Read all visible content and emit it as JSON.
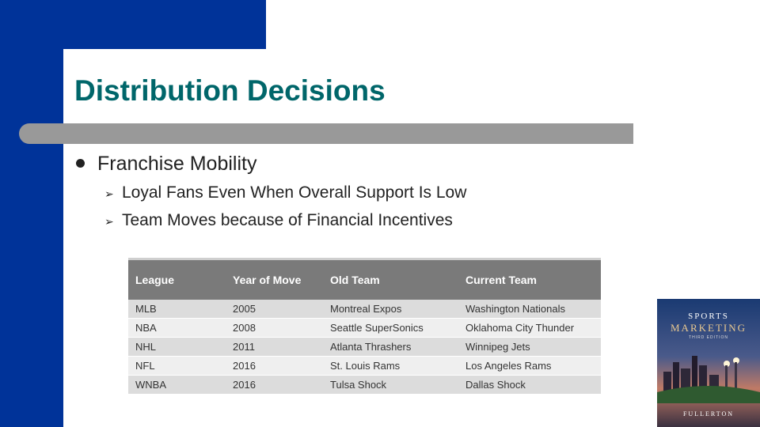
{
  "slide": {
    "title": "Distribution Decisions",
    "bullet": "Franchise Mobility",
    "sub_bullets": [
      "Loyal Fans Even When Overall Support Is Low",
      "Team Moves because of Financial Incentives"
    ]
  },
  "table": {
    "headers": [
      "League",
      "Year of Move",
      "Old Team",
      "Current Team"
    ],
    "rows": [
      [
        "MLB",
        "2005",
        "Montreal Expos",
        "Washington Nationals"
      ],
      [
        "NBA",
        "2008",
        "Seattle SuperSonics",
        "Oklahoma City Thunder"
      ],
      [
        "NHL",
        "2011",
        "Atlanta Thrashers",
        "Winnipeg Jets"
      ],
      [
        "NFL",
        "2016",
        "St. Louis Rams",
        "Los Angeles Rams"
      ],
      [
        "WNBA",
        "2016",
        "Tulsa Shock",
        "Dallas Shock"
      ]
    ]
  },
  "book_cover": {
    "line1": "SPORTS",
    "line2": "MARKETING",
    "line3": "THIRD EDITION",
    "author": "FULLERTON"
  },
  "colors": {
    "accent_blue": "#003399",
    "title_teal": "#00666a",
    "bar_gray": "#999999",
    "header_gray": "#7a7a7a"
  }
}
